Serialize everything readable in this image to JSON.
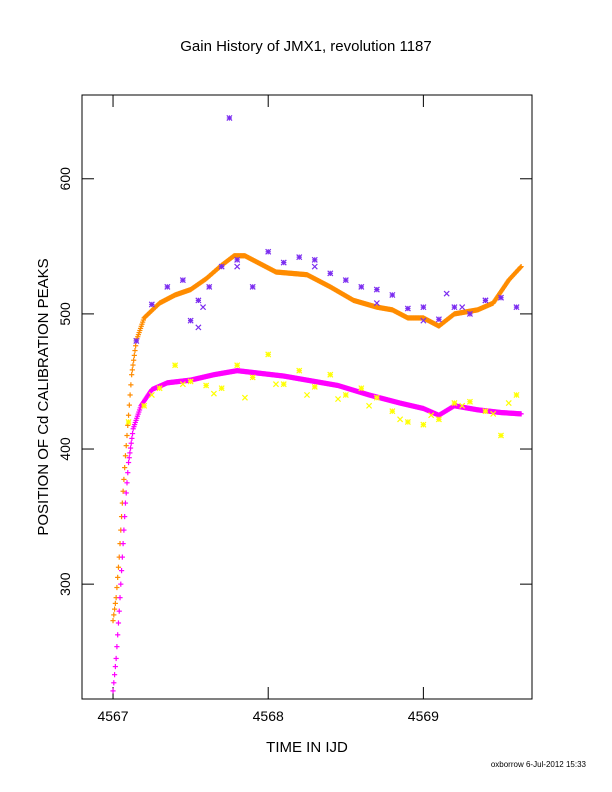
{
  "chart_data": {
    "type": "scatter",
    "title": "Gain History of JMX1, revolution 1187",
    "xlabel": "TIME IN IJD",
    "ylabel": "POSITION OF Cd CALIBRATION PEAKS",
    "xlim": [
      4566.8,
      4569.7
    ],
    "ylim": [
      215,
      662
    ],
    "xticks": [
      4567,
      4568,
      4569
    ],
    "xtick_labels": [
      "4567",
      "4568",
      "4569"
    ],
    "yticks": [
      300,
      400,
      500,
      600
    ],
    "ytick_labels": [
      "300",
      "400",
      "500",
      "600"
    ],
    "grid": false,
    "legend": "none",
    "footer": "oxborrow  6-Jul-2012 15:33",
    "series": [
      {
        "marker": "plus",
        "color": "#ff8c00",
        "points": [
          [
            4567.0,
            273
          ],
          [
            4567.02,
            290
          ],
          [
            4567.04,
            320
          ],
          [
            4567.06,
            360
          ],
          [
            4567.08,
            395
          ],
          [
            4567.1,
            425
          ],
          [
            4567.12,
            455
          ],
          [
            4567.15,
            480
          ],
          [
            4567.2,
            497
          ],
          [
            4567.3,
            508
          ],
          [
            4567.4,
            514
          ],
          [
            4567.5,
            518
          ],
          [
            4567.6,
            526
          ],
          [
            4567.7,
            536
          ],
          [
            4567.78,
            543
          ],
          [
            4567.85,
            543
          ],
          [
            4567.95,
            537
          ],
          [
            4568.05,
            531
          ],
          [
            4568.15,
            530
          ],
          [
            4568.25,
            529
          ],
          [
            4568.4,
            520
          ],
          [
            4568.55,
            510
          ],
          [
            4568.7,
            505
          ],
          [
            4568.8,
            503
          ],
          [
            4568.9,
            497
          ],
          [
            4569.0,
            497
          ],
          [
            4569.1,
            491
          ],
          [
            4569.2,
            500
          ],
          [
            4569.35,
            503
          ],
          [
            4569.45,
            508
          ],
          [
            4569.55,
            525
          ],
          [
            4569.63,
            535
          ]
        ]
      },
      {
        "marker": "plus",
        "color": "#ff00ff",
        "points": [
          [
            4567.0,
            221
          ],
          [
            4567.02,
            245
          ],
          [
            4567.04,
            280
          ],
          [
            4567.06,
            320
          ],
          [
            4567.08,
            360
          ],
          [
            4567.1,
            390
          ],
          [
            4567.13,
            415
          ],
          [
            4567.18,
            432
          ],
          [
            4567.25,
            444
          ],
          [
            4567.35,
            449
          ],
          [
            4567.5,
            451
          ],
          [
            4567.65,
            455
          ],
          [
            4567.8,
            458
          ],
          [
            4567.95,
            456
          ],
          [
            4568.1,
            454
          ],
          [
            4568.25,
            451
          ],
          [
            4568.45,
            447
          ],
          [
            4568.65,
            440
          ],
          [
            4568.85,
            434
          ],
          [
            4569.0,
            430
          ],
          [
            4569.1,
            425
          ],
          [
            4569.2,
            432
          ],
          [
            4569.35,
            429
          ],
          [
            4569.5,
            427
          ],
          [
            4569.63,
            426
          ]
        ]
      },
      {
        "marker": "star",
        "color": "#7b2cf0",
        "points": [
          [
            4567.15,
            480
          ],
          [
            4567.25,
            507
          ],
          [
            4567.35,
            520
          ],
          [
            4567.45,
            525
          ],
          [
            4567.5,
            495
          ],
          [
            4567.55,
            510
          ],
          [
            4567.62,
            520
          ],
          [
            4567.7,
            535
          ],
          [
            4567.75,
            645
          ],
          [
            4567.8,
            540
          ],
          [
            4567.9,
            520
          ],
          [
            4568.0,
            546
          ],
          [
            4568.1,
            538
          ],
          [
            4568.2,
            542
          ],
          [
            4568.3,
            540
          ],
          [
            4568.4,
            530
          ],
          [
            4568.5,
            525
          ],
          [
            4568.6,
            520
          ],
          [
            4568.7,
            518
          ],
          [
            4568.8,
            514
          ],
          [
            4568.9,
            504
          ],
          [
            4569.0,
            505
          ],
          [
            4569.1,
            496
          ],
          [
            4569.2,
            505
          ],
          [
            4569.3,
            500
          ],
          [
            4569.4,
            510
          ],
          [
            4569.5,
            512
          ],
          [
            4569.6,
            505
          ]
        ]
      },
      {
        "marker": "cross",
        "color": "#7b2cf0",
        "points": [
          [
            4567.55,
            490
          ],
          [
            4567.58,
            505
          ],
          [
            4567.8,
            535
          ],
          [
            4568.3,
            535
          ],
          [
            4568.7,
            508
          ],
          [
            4569.0,
            495
          ],
          [
            4569.15,
            515
          ],
          [
            4569.25,
            505
          ],
          [
            4569.4,
            510
          ]
        ]
      },
      {
        "marker": "star",
        "color": "#ffff00",
        "points": [
          [
            4567.1,
            420
          ],
          [
            4567.2,
            432
          ],
          [
            4567.3,
            445
          ],
          [
            4567.4,
            462
          ],
          [
            4567.5,
            450
          ],
          [
            4567.6,
            447
          ],
          [
            4567.7,
            445
          ],
          [
            4567.8,
            462
          ],
          [
            4567.9,
            453
          ],
          [
            4568.0,
            470
          ],
          [
            4568.1,
            448
          ],
          [
            4568.2,
            458
          ],
          [
            4568.3,
            446
          ],
          [
            4568.4,
            455
          ],
          [
            4568.5,
            440
          ],
          [
            4568.6,
            445
          ],
          [
            4568.7,
            438
          ],
          [
            4568.8,
            428
          ],
          [
            4568.9,
            420
          ],
          [
            4569.0,
            418
          ],
          [
            4569.1,
            422
          ],
          [
            4569.2,
            434
          ],
          [
            4569.3,
            435
          ],
          [
            4569.4,
            428
          ],
          [
            4569.5,
            410
          ],
          [
            4569.6,
            440
          ]
        ]
      },
      {
        "marker": "cross",
        "color": "#ffff00",
        "points": [
          [
            4567.25,
            440
          ],
          [
            4567.45,
            448
          ],
          [
            4567.65,
            441
          ],
          [
            4567.85,
            438
          ],
          [
            4568.05,
            448
          ],
          [
            4568.25,
            440
          ],
          [
            4568.45,
            437
          ],
          [
            4568.65,
            432
          ],
          [
            4568.85,
            422
          ],
          [
            4569.05,
            425
          ],
          [
            4569.25,
            432
          ],
          [
            4569.45,
            426
          ],
          [
            4569.55,
            434
          ]
        ]
      }
    ]
  }
}
